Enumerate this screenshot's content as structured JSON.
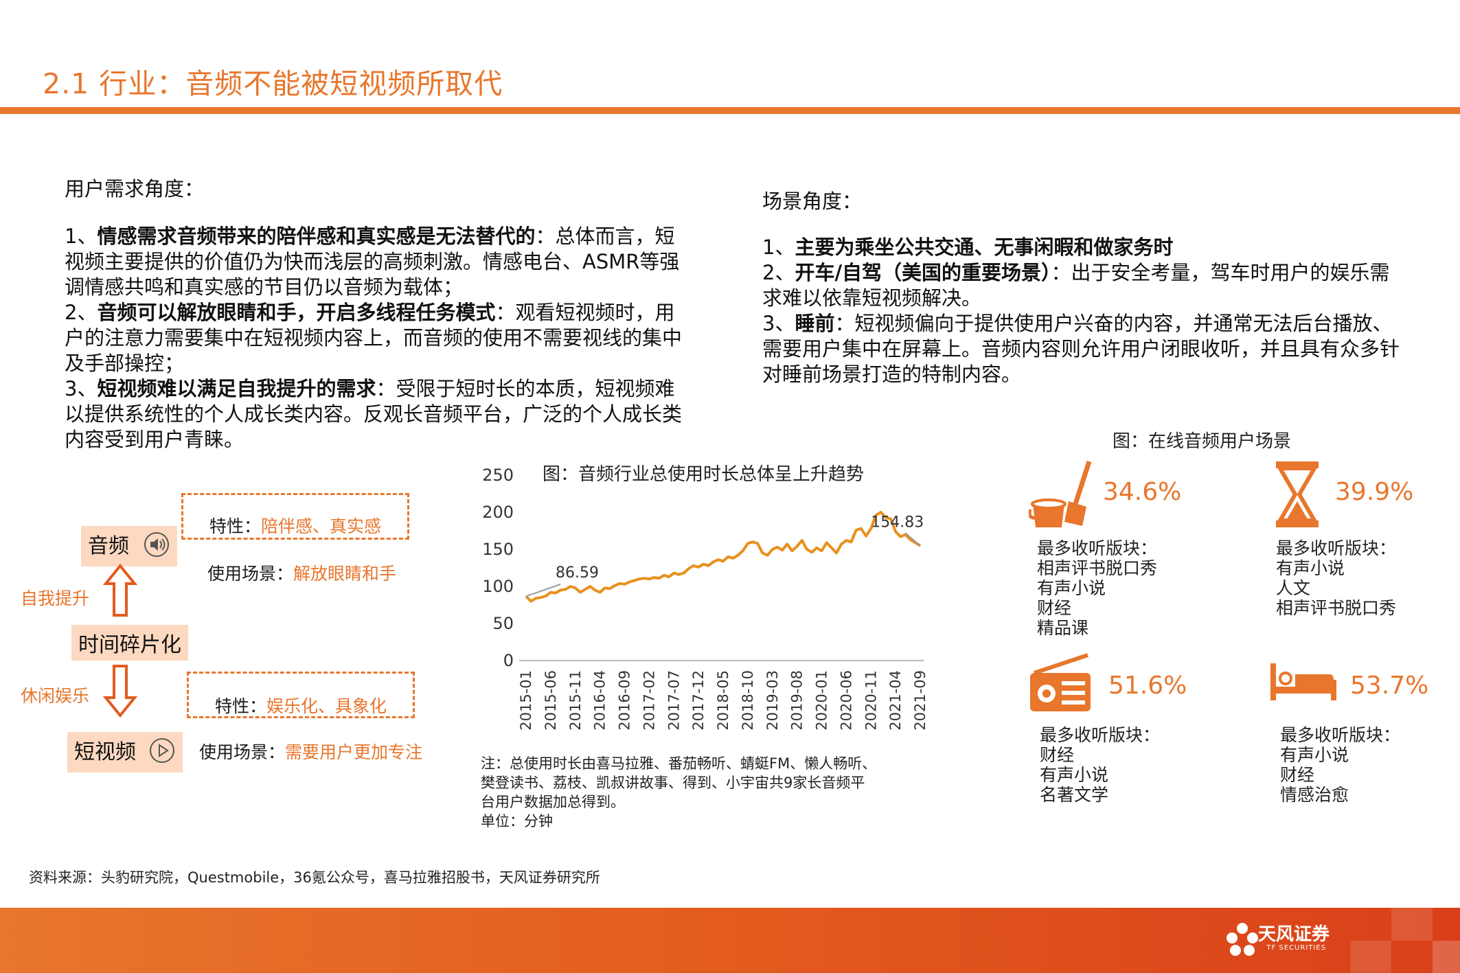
{
  "header": {
    "title": "2.1 行业：音频不能被短视频所取代"
  },
  "left": {
    "heading": "用户需求角度：",
    "points": [
      {
        "prefix": "1、",
        "bold": "情感需求音频带来的陪伴感和真实感是无法替代的",
        "text": "：总体而言，短视频主要提供的价值仍为快而浅层的高频刺激。情感电台、ASMR等强调情感共鸣和真实感的节目仍以音频为载体；"
      },
      {
        "prefix": "2、",
        "bold": "音频可以解放眼睛和手，开启多线程任务模式",
        "text": "：观看短视频时，用户的注意力需要集中在短视频内容上，而音频的使用不需要视线的集中及手部操控；"
      },
      {
        "prefix": "3、",
        "bold": "短视频难以满足自我提升的需求",
        "text": "：受限于短时长的本质，短视频难以提供系统性的个人成长类内容。反观长音频平台，广泛的个人成长类内容受到用户青睐。"
      }
    ]
  },
  "right": {
    "heading": "场景角度：",
    "points": [
      {
        "prefix": "1、",
        "bold": "主要为乘坐公共交通、无事闲暇和做家务时",
        "text": ""
      },
      {
        "prefix": "2、",
        "bold": "开车/自驾（美国的重要场景）",
        "text": "：出于安全考量，驾车时用户的娱乐需求难以依靠短视频解决。"
      },
      {
        "prefix": "3、",
        "bold": "睡前",
        "text": "：短视频偏向于提供使用户兴奋的内容，并通常无法后台播放、需要用户集中在屏幕上。音频内容则允许用户闭眼收听，并且具有众多针对睡前场景打造的特制内容。"
      }
    ]
  },
  "diagram": {
    "audio_label": "音频",
    "middle_label": "时间碎片化",
    "video_label": "短视频",
    "up_label": "自我提升",
    "down_label": "休闲娱乐",
    "audio_trait_key": "特性：",
    "audio_trait_value": "陪伴感、真实感",
    "audio_scene_key": "使用场景：",
    "audio_scene_value": "解放眼睛和手",
    "video_trait_key": "特性：",
    "video_trait_value": "娱乐化、具象化",
    "video_scene_key": "使用场景：",
    "video_scene_value": "需要用户更加专注"
  },
  "chart_data": {
    "type": "line",
    "title": "图：音频行业总使用时长总体呈上升趋势",
    "xlabel": "",
    "ylabel": "",
    "ylim": [
      0,
      250
    ],
    "yticks": [
      0,
      50,
      100,
      150,
      200,
      250
    ],
    "xticks": [
      "2015-01",
      "2015-06",
      "2015-11",
      "2016-04",
      "2016-09",
      "2017-02",
      "2017-07",
      "2017-12",
      "2018-05",
      "2018-10",
      "2019-03",
      "2019-08",
      "2020-01",
      "2020-06",
      "2020-11",
      "2021-04",
      "2021-09"
    ],
    "x": [
      "2015-01",
      "2015-02",
      "2015-03",
      "2015-04",
      "2015-05",
      "2015-06",
      "2015-07",
      "2015-08",
      "2015-09",
      "2015-10",
      "2015-11",
      "2015-12",
      "2016-01",
      "2016-02",
      "2016-03",
      "2016-04",
      "2016-05",
      "2016-06",
      "2016-07",
      "2016-08",
      "2016-09",
      "2016-10",
      "2016-11",
      "2016-12",
      "2017-01",
      "2017-02",
      "2017-03",
      "2017-04",
      "2017-05",
      "2017-06",
      "2017-07",
      "2017-08",
      "2017-09",
      "2017-10",
      "2017-11",
      "2017-12",
      "2018-01",
      "2018-02",
      "2018-03",
      "2018-04",
      "2018-05",
      "2018-06",
      "2018-07",
      "2018-08",
      "2018-09",
      "2018-10",
      "2018-11",
      "2018-12",
      "2019-01",
      "2019-02",
      "2019-03",
      "2019-04",
      "2019-05",
      "2019-06",
      "2019-07",
      "2019-08",
      "2019-09",
      "2019-10",
      "2019-11",
      "2019-12",
      "2020-01",
      "2020-02",
      "2020-03",
      "2020-04",
      "2020-05",
      "2020-06",
      "2020-07",
      "2020-08",
      "2020-09",
      "2020-10",
      "2020-11",
      "2020-12",
      "2021-01",
      "2021-02",
      "2021-03",
      "2021-04",
      "2021-05",
      "2021-06",
      "2021-07",
      "2021-08",
      "2021-09"
    ],
    "series": [
      {
        "color": "#e8901e",
        "values": [
          86.59,
          80,
          84,
          85,
          87,
          92,
          91,
          95,
          96,
          100,
          98,
          92,
          96,
          100,
          95,
          92,
          98,
          97,
          101,
          104,
          103,
          106,
          108,
          110,
          111,
          110,
          112,
          111,
          115,
          113,
          118,
          116,
          118,
          124,
          128,
          126,
          130,
          128,
          133,
          136,
          134,
          140,
          138,
          142,
          148,
          158,
          160,
          158,
          145,
          142,
          150,
          153,
          149,
          157,
          148,
          154,
          162,
          150,
          146,
          152,
          148,
          159,
          152,
          145,
          157,
          162,
          160,
          176,
          178,
          168,
          178,
          196,
          200,
          193,
          191,
          174,
          167,
          170,
          163,
          159,
          154.83
        ]
      }
    ],
    "annotations": [
      "86.59",
      "154.83"
    ]
  },
  "chart_notes": {
    "note1": "注：总使用时长由喜马拉雅、番茄畅听、蜻蜓FM、懒人畅听、",
    "note2": "樊登读书、荔枝、凯叔讲故事、得到、小宇宙共9家长音频平",
    "note3": "台用户数据加总得到。",
    "unit": "单位：分钟"
  },
  "scenes": {
    "title": "图：在线音频用户场景",
    "items": [
      {
        "icon": "cleaning-icon",
        "pct": "34.6%",
        "label": "最多收听版块：",
        "lines": [
          "相声评书脱口秀",
          "有声小说",
          "财经",
          "精品课"
        ]
      },
      {
        "icon": "hourglass-icon",
        "pct": "39.9%",
        "label": "最多收听版块：",
        "lines": [
          "有声小说",
          "人文",
          "相声评书脱口秀"
        ]
      },
      {
        "icon": "radio-icon",
        "pct": "51.6%",
        "label": "最多收听版块：",
        "lines": [
          "财经",
          "有声小说",
          "名著文学"
        ]
      },
      {
        "icon": "bed-icon",
        "pct": "53.7%",
        "label": "最多收听版块：",
        "lines": [
          "有声小说",
          "财经",
          "情感治愈"
        ]
      }
    ]
  },
  "footer": {
    "source": "资料来源：头豹研究院，Questmobile，36氪公众号，喜马拉雅招股书，天风证券研究所",
    "logo_cn": "天风证券",
    "logo_en": "TF SECURITIES"
  },
  "colors": {
    "accent": "#e8762c",
    "line": "#e8901e",
    "highlight_bg": "#fcd9c0"
  }
}
